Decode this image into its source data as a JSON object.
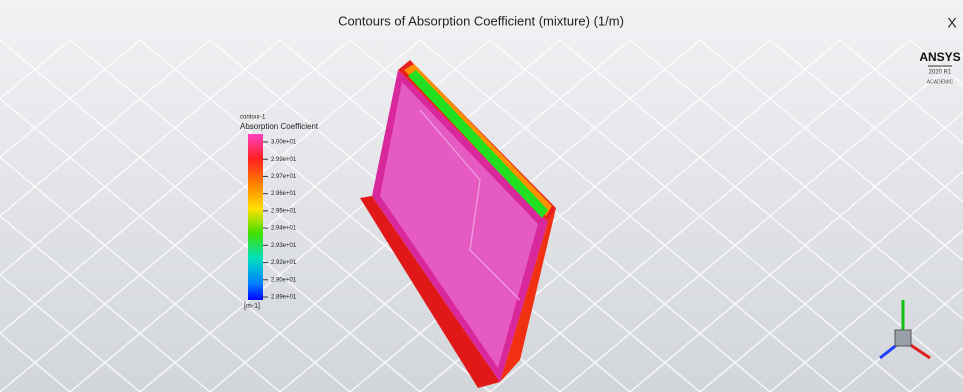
{
  "header": {
    "title": "Contours of Absorption Coefficient (mixture) (1/m)",
    "close": "X"
  },
  "logo": {
    "name": "ANSYS",
    "version": "2020 R1",
    "edition": "ACADEMIC"
  },
  "legend": {
    "name": "contour-1",
    "title": "Absorption Coefficient",
    "labels": [
      "3.00e+01",
      "2.99e+01",
      "2.97e+01",
      "2.96e+01",
      "2.95e+01",
      "2.94e+01",
      "2.93e+01",
      "2.92e+01",
      "2.90e+01",
      "2.89e+01"
    ],
    "unit": "[m-1]"
  }
}
